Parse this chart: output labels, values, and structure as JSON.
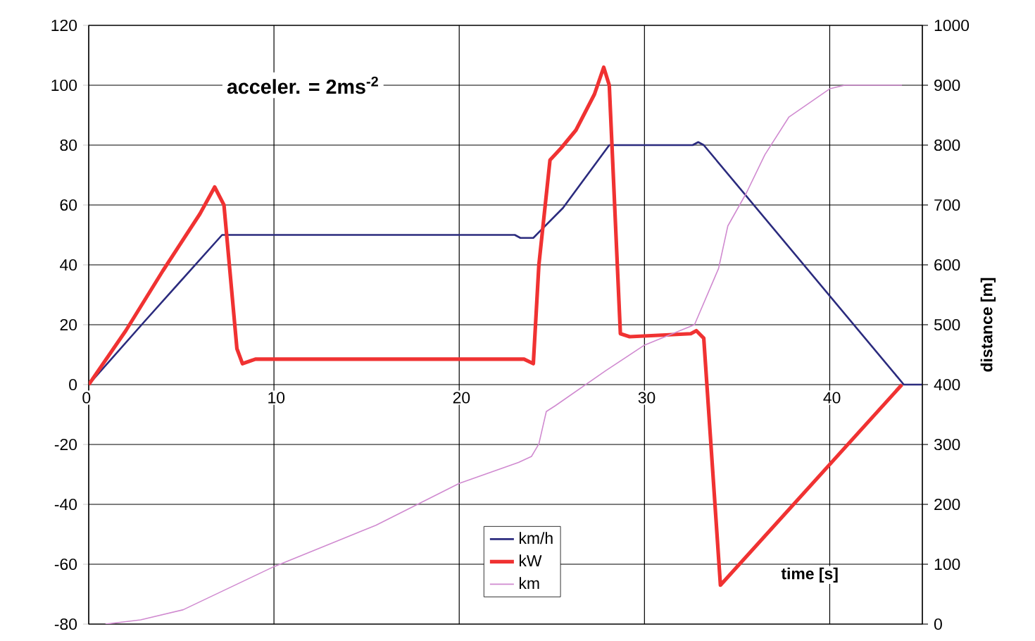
{
  "chart_data": {
    "type": "line",
    "xlabel": "time [s]",
    "y2label": "distance [m]",
    "annotations": [
      "acceler. = 2ms$^{-2}$"
    ],
    "xlim": [
      0,
      45
    ],
    "xticks": [
      0,
      10,
      20,
      30,
      40
    ],
    "ylim": [
      -80,
      120
    ],
    "yticks": [
      -80,
      -60,
      -40,
      -20,
      0,
      20,
      40,
      60,
      80,
      100,
      120
    ],
    "y2lim": [
      0,
      1000
    ],
    "y2ticks": [
      0,
      100,
      200,
      300,
      400,
      500,
      600,
      700,
      800,
      900,
      1000
    ],
    "grid": true,
    "legend": "bottom",
    "marker": "none",
    "series": [
      {
        "name": "km/h",
        "color": "#2b2b7e",
        "x": [
          0,
          3,
          7.2,
          23,
          23.3,
          24,
          25.6,
          28.1,
          32.6,
          32.9,
          33.2,
          44,
          45
        ],
        "values": [
          0,
          21,
          50,
          50,
          49,
          49,
          59,
          80,
          80,
          81,
          80,
          0,
          0
        ]
      },
      {
        "name": "kW",
        "color": "#f03232",
        "x": [
          0,
          2,
          4,
          6,
          6.8,
          7.3,
          8.0,
          8.3,
          9,
          23.5,
          24.0,
          24.3,
          24.9,
          25.5,
          26.3,
          27.3,
          27.8,
          28.1,
          28.7,
          29.2,
          32.5,
          32.8,
          33.2,
          34.1,
          43.9
        ],
        "values": [
          0,
          18,
          38,
          57,
          66,
          60,
          12,
          7,
          8.5,
          8.5,
          7,
          40,
          75,
          79,
          85,
          97,
          106,
          100,
          17,
          16,
          17,
          18,
          15.5,
          -67,
          0
        ]
      },
      {
        "name": "km",
        "color": "#d08ad0",
        "axis": "y2",
        "x": [
          0.9,
          2.8,
          5.1,
          10,
          15.5,
          20,
          23.2,
          23.9,
          24.3,
          24.7,
          25.2,
          27.9,
          30,
          32.7,
          34,
          34.5,
          35.5,
          36.5,
          37.8,
          40,
          40.8,
          43.9
        ],
        "values": [
          0,
          7,
          24,
          96,
          165,
          235,
          270,
          280,
          301,
          355,
          365,
          423,
          466,
          500,
          594,
          665,
          720,
          784,
          847,
          894,
          900,
          900
        ]
      }
    ]
  }
}
